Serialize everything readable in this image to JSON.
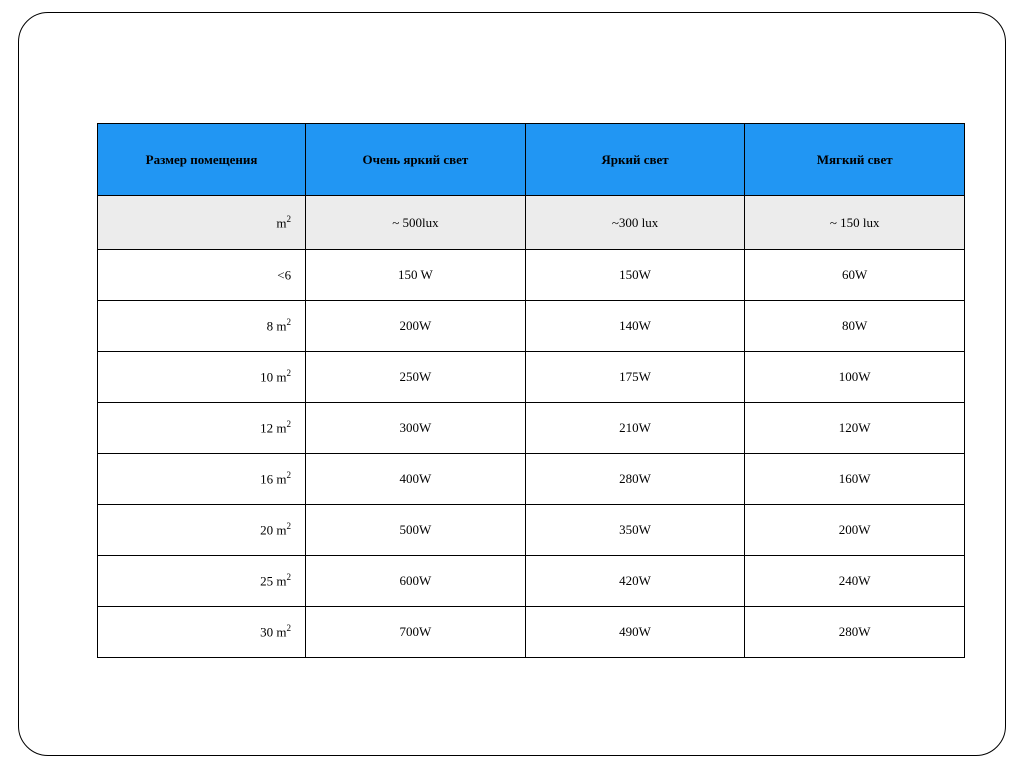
{
  "table": {
    "type": "table",
    "header_bg": "#2196f3",
    "subheader_bg": "#ececec",
    "border_color": "#000000",
    "font_family": "Times New Roman",
    "header_fontsize": 13,
    "cell_fontsize": 13,
    "columns": [
      {
        "label": "Размер помещения",
        "width_pct": 24,
        "align": "right"
      },
      {
        "label": "Очень яркий свет",
        "width_pct": 25.3,
        "align": "center"
      },
      {
        "label": "Яркий свет",
        "width_pct": 25.3,
        "align": "center"
      },
      {
        "label": "Мягкий свет",
        "width_pct": 25.3,
        "align": "center"
      }
    ],
    "subheader": {
      "c0_prefix": "m",
      "c0_sup": "2",
      "c1": "~ 500lux",
      "c2": "~300 lux",
      "c3": "~ 150 lux"
    },
    "rows": [
      {
        "c0_prefix": "<6",
        "c0_sup": "",
        "c1": "150 W",
        "c2": "150W",
        "c3": "60W"
      },
      {
        "c0_prefix": "8 m",
        "c0_sup": "2",
        "c1": "200W",
        "c2": "140W",
        "c3": "80W"
      },
      {
        "c0_prefix": "10 m",
        "c0_sup": "2",
        "c1": "250W",
        "c2": "175W",
        "c3": "100W"
      },
      {
        "c0_prefix": "12 m",
        "c0_sup": "2",
        "c1": "300W",
        "c2": "210W",
        "c3": "120W"
      },
      {
        "c0_prefix": "16 m",
        "c0_sup": "2",
        "c1": "400W",
        "c2": "280W",
        "c3": "160W"
      },
      {
        "c0_prefix": "20 m",
        "c0_sup": "2",
        "c1": "500W",
        "c2": "350W",
        "c3": "200W"
      },
      {
        "c0_prefix": "25 m",
        "c0_sup": "2",
        "c1": "600W",
        "c2": "420W",
        "c3": "240W"
      },
      {
        "c0_prefix": "30 m",
        "c0_sup": "2",
        "c1": "700W",
        "c2": "490W",
        "c3": "280W"
      }
    ]
  }
}
